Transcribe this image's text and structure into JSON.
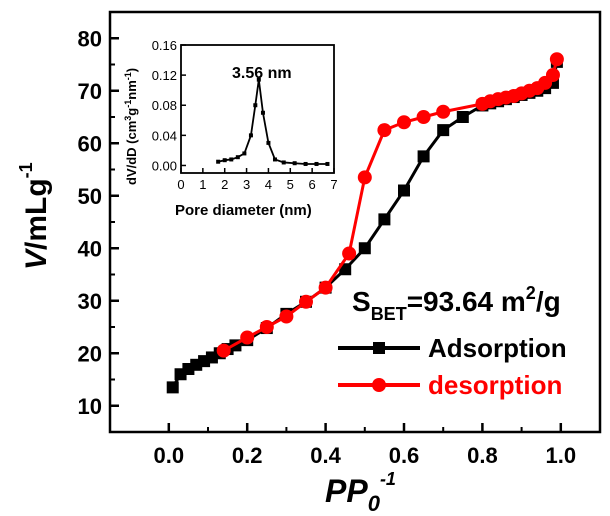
{
  "chart_data": [
    {
      "type": "scatter",
      "xlabel_main": "PP",
      "xlabel_sub": "0",
      "xlabel_sup": "-1",
      "ylabel_main": "V/mLg",
      "ylabel_sup": "-1",
      "xlim": [
        -0.15,
        1.1
      ],
      "ylim": [
        5,
        85
      ],
      "xticks": [
        "0.0",
        "0.2",
        "0.4",
        "0.6",
        "0.8",
        "1.0"
      ],
      "yticks": [
        "10",
        "20",
        "30",
        "40",
        "50",
        "60",
        "70",
        "80"
      ],
      "annotation_main": "S",
      "annotation_sub": "BET",
      "annotation_rest": "=93.64 m",
      "annotation_sup": "2",
      "annotation_end": "/g",
      "legend_position": "bottom-right",
      "series": [
        {
          "name": "Adsorption",
          "color": "#000000",
          "marker": "square",
          "x": [
            0.01,
            0.03,
            0.05,
            0.07,
            0.09,
            0.11,
            0.13,
            0.15,
            0.17,
            0.2,
            0.25,
            0.3,
            0.35,
            0.4,
            0.45,
            0.5,
            0.55,
            0.6,
            0.65,
            0.7,
            0.75,
            0.8,
            0.82,
            0.84,
            0.86,
            0.88,
            0.9,
            0.92,
            0.94,
            0.96,
            0.98,
            0.99
          ],
          "y": [
            13.5,
            16,
            17,
            17.8,
            18.5,
            19.2,
            20,
            20.8,
            21.5,
            22.5,
            24.8,
            27.5,
            29.8,
            32.5,
            36,
            40,
            45.5,
            51,
            57.5,
            62.5,
            65,
            67.2,
            67.6,
            68,
            68.4,
            68.8,
            69.2,
            69.6,
            70,
            70.5,
            71.5,
            75.5
          ]
        },
        {
          "name": "desorption",
          "color": "#ff0000",
          "marker": "circle",
          "x": [
            0.99,
            0.98,
            0.96,
            0.94,
            0.92,
            0.9,
            0.88,
            0.86,
            0.84,
            0.82,
            0.8,
            0.7,
            0.65,
            0.6,
            0.55,
            0.5,
            0.46,
            0.4,
            0.35,
            0.3,
            0.25,
            0.2,
            0.14
          ],
          "y": [
            76,
            73,
            71.5,
            70.5,
            70,
            69.5,
            69,
            68.7,
            68.4,
            68,
            67.5,
            66,
            65,
            64,
            62.5,
            53.5,
            39,
            32.5,
            29.8,
            27,
            25,
            23,
            20.5
          ]
        }
      ]
    },
    {
      "type": "line",
      "inset": true,
      "xlabel": "Pore diameter (nm)",
      "ylabel_text_1": "dV/dD (cm",
      "ylabel_sup_1": "3",
      "ylabel_text_2": "g",
      "ylabel_sup_2": "-1",
      "ylabel_text_3": "nm",
      "ylabel_sup_3": "-1",
      "ylabel_text_4": ")",
      "xlim": [
        0,
        7
      ],
      "ylim": [
        -0.01,
        0.16
      ],
      "xticks": [
        "0",
        "1",
        "2",
        "3",
        "4",
        "5",
        "6",
        "7"
      ],
      "yticks": [
        "0.00",
        "0.04",
        "0.08",
        "0.12",
        "0.16"
      ],
      "peak_label": "3.56 nm",
      "series": [
        {
          "color": "#000000",
          "x": [
            1.7,
            2.0,
            2.3,
            2.6,
            2.9,
            3.2,
            3.4,
            3.56,
            3.75,
            4.0,
            4.3,
            4.7,
            5.2,
            5.7,
            6.2,
            6.7
          ],
          "y": [
            0.005,
            0.007,
            0.008,
            0.011,
            0.016,
            0.04,
            0.08,
            0.114,
            0.07,
            0.03,
            0.008,
            0.004,
            0.003,
            0.002,
            0.002,
            0.002
          ]
        }
      ]
    }
  ]
}
